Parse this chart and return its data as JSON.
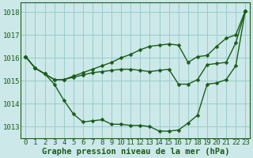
{
  "xlabel": "Graphe pression niveau de la mer (hPa)",
  "xlim": [
    -0.5,
    23.5
  ],
  "ylim": [
    1012.5,
    1018.4
  ],
  "yticks": [
    1013,
    1014,
    1015,
    1016,
    1017,
    1018
  ],
  "xticks": [
    0,
    1,
    2,
    3,
    4,
    5,
    6,
    7,
    8,
    9,
    10,
    11,
    12,
    13,
    14,
    15,
    16,
    17,
    18,
    19,
    20,
    21,
    22,
    23
  ],
  "bg_color": "#cce8e8",
  "grid_color": "#99cccc",
  "line_color": "#1a5c1a",
  "marker": "D",
  "marker_size": 2.5,
  "line_width": 1.0,
  "series": [
    [
      1016.05,
      1015.55,
      1015.3,
      1014.85,
      1014.15,
      1013.55,
      1013.2,
      1013.25,
      1013.3,
      1013.1,
      1013.1,
      1013.05,
      1013.05,
      1013.0,
      1012.8,
      1012.8,
      1012.85,
      1013.15,
      1013.5,
      1014.85,
      1014.9,
      1015.05,
      1015.65,
      1018.05
    ],
    [
      1016.05,
      1015.55,
      1015.3,
      1015.05,
      1015.05,
      1015.15,
      1015.25,
      1015.35,
      1015.4,
      1015.45,
      1015.5,
      1015.5,
      1015.45,
      1015.4,
      1015.45,
      1015.5,
      1014.85,
      1014.85,
      1015.05,
      1015.7,
      1015.75,
      1015.8,
      1016.65,
      1018.05
    ],
    [
      1016.05,
      1015.55,
      1015.3,
      1015.05,
      1015.05,
      1015.2,
      1015.35,
      1015.5,
      1015.65,
      1015.8,
      1016.0,
      1016.15,
      1016.35,
      1016.5,
      1016.55,
      1016.6,
      1016.55,
      1015.8,
      1016.05,
      1016.1,
      1016.5,
      1016.85,
      1017.0,
      1018.05
    ]
  ],
  "font_color": "#1a5c1a",
  "font_size": 6.5,
  "xlabel_fontsize": 7.5,
  "font_family": "monospace"
}
